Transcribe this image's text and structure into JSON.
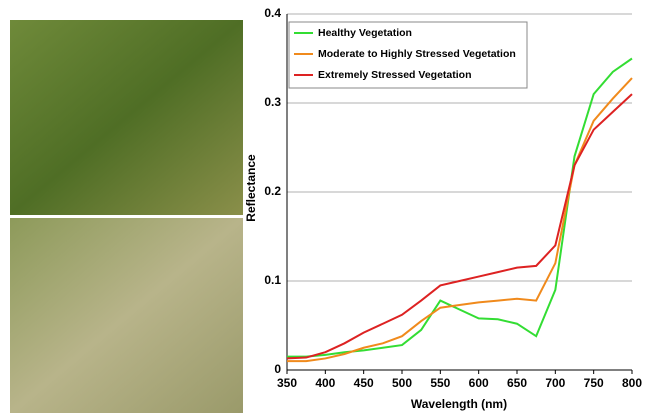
{
  "chart_data": {
    "type": "line",
    "x_label": "Wavelength (nm)",
    "y_label": "Reflectance",
    "x": [
      350,
      375,
      400,
      425,
      450,
      475,
      500,
      525,
      550,
      575,
      600,
      625,
      650,
      675,
      700,
      725,
      750,
      775,
      800
    ],
    "series": [
      {
        "name": "Healthy Vegetation",
        "color": "#33dd33",
        "values": [
          0.015,
          0.015,
          0.017,
          0.02,
          0.022,
          0.025,
          0.028,
          0.045,
          0.078,
          0.068,
          0.058,
          0.057,
          0.052,
          0.038,
          0.09,
          0.24,
          0.31,
          0.335,
          0.35
        ]
      },
      {
        "name": "Moderate to Highly Stressed Vegetation",
        "color": "#f08a1c",
        "values": [
          0.01,
          0.01,
          0.013,
          0.018,
          0.025,
          0.03,
          0.038,
          0.055,
          0.07,
          0.073,
          0.076,
          0.078,
          0.08,
          0.078,
          0.12,
          0.23,
          0.28,
          0.305,
          0.328
        ]
      },
      {
        "name": "Extremely Stressed Vegetation",
        "color": "#dd2222",
        "values": [
          0.013,
          0.014,
          0.02,
          0.03,
          0.042,
          0.052,
          0.062,
          0.078,
          0.095,
          0.1,
          0.105,
          0.11,
          0.115,
          0.117,
          0.14,
          0.23,
          0.27,
          0.29,
          0.31
        ]
      }
    ],
    "xlim": [
      350,
      800
    ],
    "xticks": [
      350,
      400,
      450,
      500,
      550,
      600,
      650,
      700,
      750,
      800
    ],
    "ylim": [
      0,
      0.4
    ],
    "yticks": [
      0,
      0.1,
      0.2,
      0.3,
      0.4
    ],
    "grid": true,
    "legend": "top-left"
  }
}
